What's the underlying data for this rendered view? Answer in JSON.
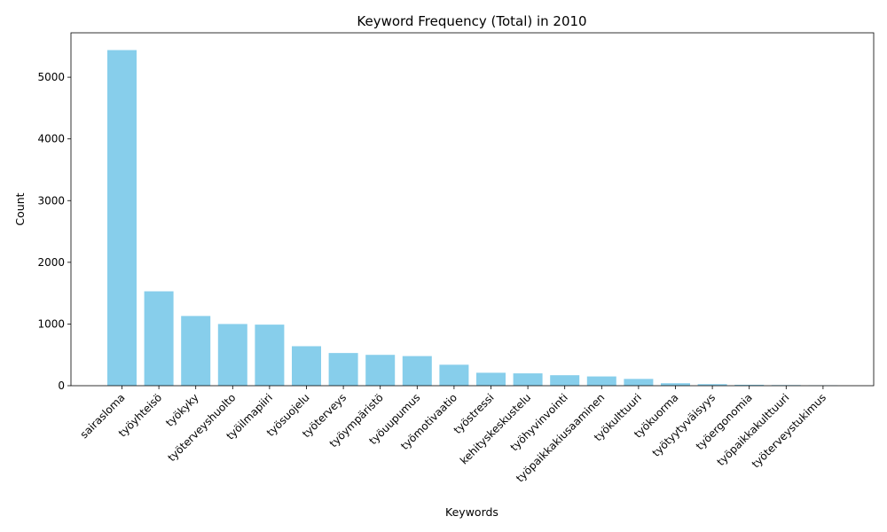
{
  "chart_data": {
    "type": "bar",
    "title": "Keyword Frequency (Total) in 2010",
    "xlabel": "Keywords",
    "ylabel": "Count",
    "ylim": [
      0,
      5720
    ],
    "yticks": [
      0,
      1000,
      2000,
      3000,
      4000,
      5000
    ],
    "grid": false,
    "bar_color": "#87CEEB",
    "categories": [
      "sairasloma",
      "työyhteisö",
      "työkyky",
      "työterveyshuolto",
      "työilmapiiri",
      "työsuojelu",
      "työterveys",
      "työympäristö",
      "työuupumus",
      "työmotivaatio",
      "työstressi",
      "kehityskeskustelu",
      "työhyvinvointi",
      "työpaikkakiusaaminen",
      "työkulttuuri",
      "työkuorma",
      "työtyytyväisyys",
      "työergonomia",
      "työpaikkakulttuuri",
      "työterveystukimus"
    ],
    "values": [
      5440,
      1530,
      1130,
      1000,
      990,
      640,
      530,
      500,
      480,
      340,
      210,
      200,
      170,
      150,
      110,
      40,
      25,
      15,
      10,
      5
    ]
  }
}
